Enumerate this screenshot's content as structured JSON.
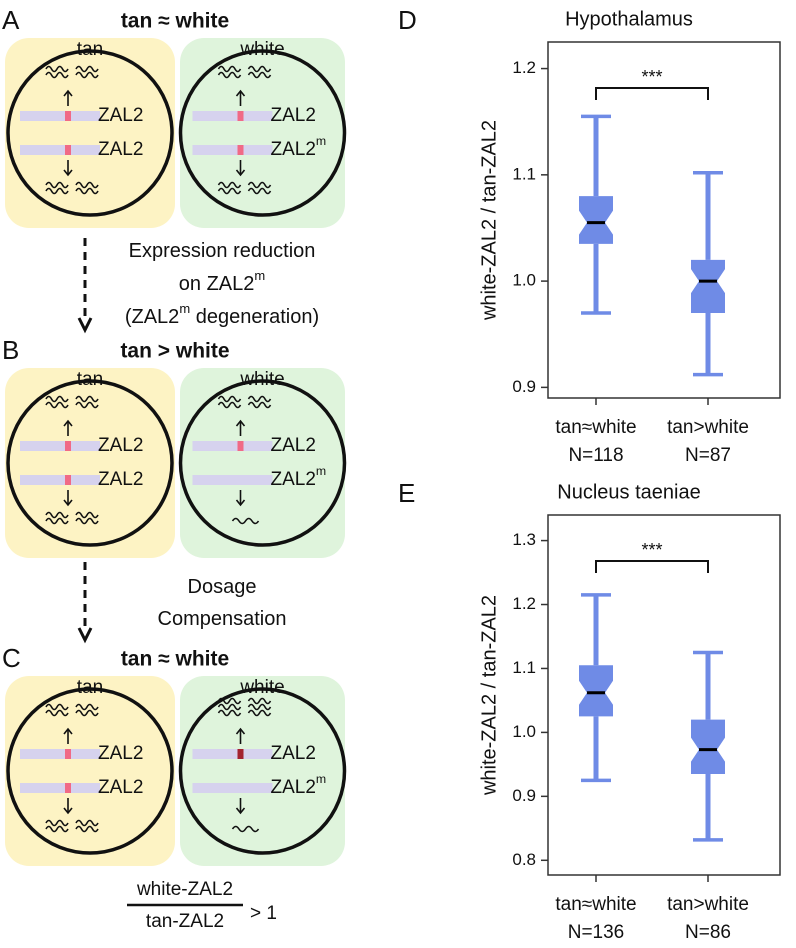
{
  "diagram": {
    "panels": [
      {
        "letter": "A",
        "title": "tan ≈ white",
        "cells": [
          {
            "label": "tan",
            "genes": [
              {
                "text": "ZAL2"
              },
              {
                "text": "ZAL2"
              }
            ]
          },
          {
            "label": "white",
            "genes": [
              {
                "text": "ZAL2"
              },
              {
                "text": "ZAL2",
                "sup": "m"
              }
            ]
          }
        ]
      },
      {
        "letter": "B",
        "title": "tan > white",
        "cells": [
          {
            "label": "tan",
            "genes": [
              {
                "text": "ZAL2"
              },
              {
                "text": "ZAL2"
              }
            ]
          },
          {
            "label": "white",
            "genes": [
              {
                "text": "ZAL2"
              },
              {
                "text": "ZAL2",
                "sup": "m"
              }
            ]
          }
        ]
      },
      {
        "letter": "C",
        "title": "tan ≈ white",
        "cells": [
          {
            "label": "tan",
            "genes": [
              {
                "text": "ZAL2"
              },
              {
                "text": "ZAL2"
              }
            ]
          },
          {
            "label": "white",
            "genes": [
              {
                "text": "ZAL2"
              },
              {
                "text": "ZAL2",
                "sup": "m"
              }
            ]
          }
        ]
      }
    ],
    "transitions": [
      {
        "lines": [
          {
            "text": "Expression reduction"
          },
          {
            "text": "on ZAL2",
            "sup": "m"
          },
          {
            "text": "(ZAL2",
            "sup": "m",
            "after": " degeneration)"
          }
        ]
      },
      {
        "lines": [
          {
            "text": "Dosage"
          },
          {
            "text": "Compensation"
          }
        ]
      }
    ],
    "ratio": {
      "numerator": "white-ZAL2",
      "denominator": "tan-ZAL2",
      "relation": "> 1"
    }
  },
  "chart_data": [
    {
      "type": "box",
      "panel": "D",
      "title": "Hypothalamus",
      "y_label": "white-ZAL2 / tan-ZAL2",
      "categories": [
        "tan≈white",
        "tan>white"
      ],
      "n_labels": [
        "N=118",
        "N=87"
      ],
      "color": "#6f8be6",
      "boxes": [
        {
          "whisker_low": 0.97,
          "q1": 1.035,
          "median": 1.055,
          "q3": 1.08,
          "whisker_high": 1.155
        },
        {
          "whisker_low": 0.912,
          "q1": 0.97,
          "median": 1.0,
          "q3": 1.02,
          "whisker_high": 1.102
        }
      ],
      "ylim": [
        0.89,
        1.225
      ],
      "yticks": [
        0.9,
        {
          "value": 1,
          "label": "1.0"
        },
        1.1,
        1.2
      ],
      "significance": "***"
    },
    {
      "type": "box",
      "panel": "E",
      "title": "Nucleus taeniae",
      "y_label": "white-ZAL2 / tan-ZAL2",
      "categories": [
        "tan≈white",
        "tan>white"
      ],
      "n_labels": [
        "N=136",
        "N=86"
      ],
      "color": "#6f8be6",
      "boxes": [
        {
          "whisker_low": 0.925,
          "q1": 1.025,
          "median": 1.062,
          "q3": 1.105,
          "whisker_high": 1.215
        },
        {
          "whisker_low": 0.832,
          "q1": 0.935,
          "median": 0.973,
          "q3": 1.02,
          "whisker_high": 1.125
        }
      ],
      "ylim": [
        0.777,
        1.34
      ],
      "yticks": [
        0.8,
        0.9,
        {
          "value": 1,
          "label": "1.0"
        },
        1.1,
        1.2,
        1.3
      ],
      "significance": "***"
    }
  ]
}
